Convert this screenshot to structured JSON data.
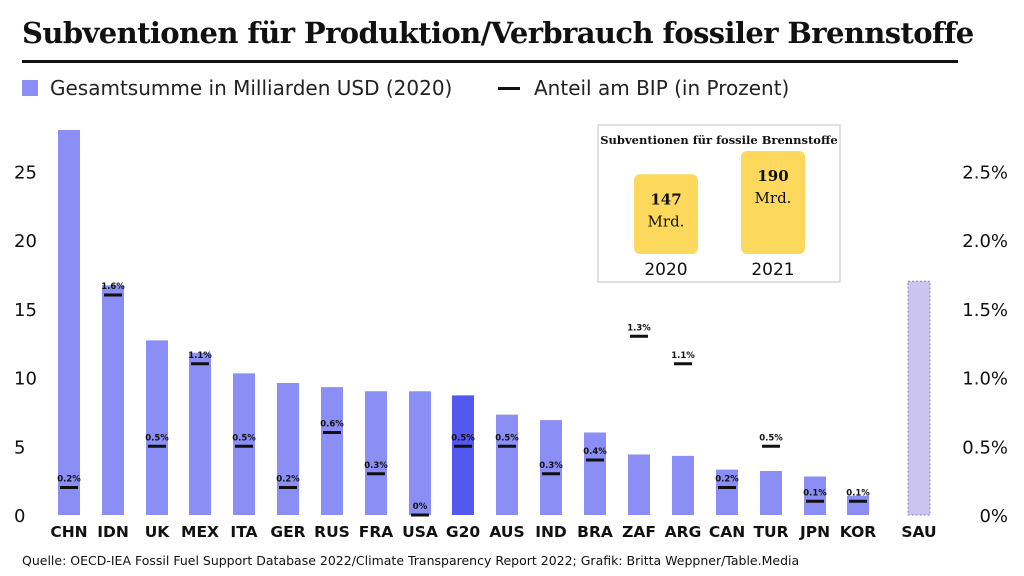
{
  "title": "Subventionen für Produktion/Verbrauch fossiler Brennstoffe",
  "legend": {
    "bars_label": "Gesamtsumme in Milliarden USD (2020)",
    "line_label": "Anteil am BIP (in Prozent)"
  },
  "colors": {
    "bar": "#8b8ff5",
    "bar_highlight": "#5558f0",
    "bar_sau": "#cbc3f0",
    "marker": "#111111",
    "inset_bar": "#fcd95c"
  },
  "source": "Quelle: OECD-IEA Fossil Fuel Support Database 2022/Climate Transparency Report 2022; Grafik: Britta Weppner/Table.Media",
  "chart_data": {
    "type": "bar",
    "categories": [
      "CHN",
      "IDN",
      "UK",
      "MEX",
      "ITA",
      "GER",
      "RUS",
      "FRA",
      "USA",
      "G20",
      "AUS",
      "IND",
      "BRA",
      "ZAF",
      "ARG",
      "CAN",
      "TUR",
      "JPN",
      "KOR",
      "SAU"
    ],
    "series": [
      {
        "name": "Gesamtsumme in Milliarden USD (2020)",
        "axis": "left",
        "values": [
          28.0,
          16.7,
          12.7,
          11.8,
          10.3,
          9.6,
          9.3,
          9.0,
          9.0,
          8.7,
          7.3,
          6.9,
          6.0,
          4.4,
          4.3,
          3.3,
          3.2,
          2.8,
          1.4,
          17.0
        ]
      },
      {
        "name": "Anteil am BIP (in Prozent)",
        "axis": "right",
        "values": [
          0.2,
          1.6,
          0.5,
          1.1,
          0.5,
          0.2,
          0.6,
          0.3,
          0.0,
          0.5,
          0.5,
          0.3,
          0.4,
          1.3,
          1.1,
          0.2,
          0.5,
          0.1,
          0.1,
          null
        ],
        "labels": [
          "0.2%",
          "1.6%",
          "0.5%",
          "1.1%",
          "0.5%",
          "0.2%",
          "0.6%",
          "0.3%",
          "0%",
          "0.5%",
          "0.5%",
          "0.3%",
          "0.4%",
          "1.3%",
          "1.1%",
          "0.2%",
          "0.5%",
          "0.1%",
          "0.1%",
          ""
        ]
      }
    ],
    "highlight_category": "G20",
    "left_axis": {
      "ticks": [
        0,
        5,
        10,
        15,
        20,
        25
      ],
      "ylim": [
        0,
        28
      ]
    },
    "right_axis": {
      "ticks": [
        "0%",
        "0.5%",
        "1.0%",
        "1.5%",
        "2.0%",
        "2.5%"
      ],
      "ylim": [
        0,
        2.8
      ]
    },
    "grid": false,
    "inset": {
      "title": "Subventionen für fossile Brennstoffe",
      "bars": [
        {
          "year": "2020",
          "value": 147,
          "label": "147",
          "unit": "Mrd."
        },
        {
          "year": "2021",
          "value": 190,
          "label": "190",
          "unit": "Mrd."
        }
      ]
    }
  }
}
